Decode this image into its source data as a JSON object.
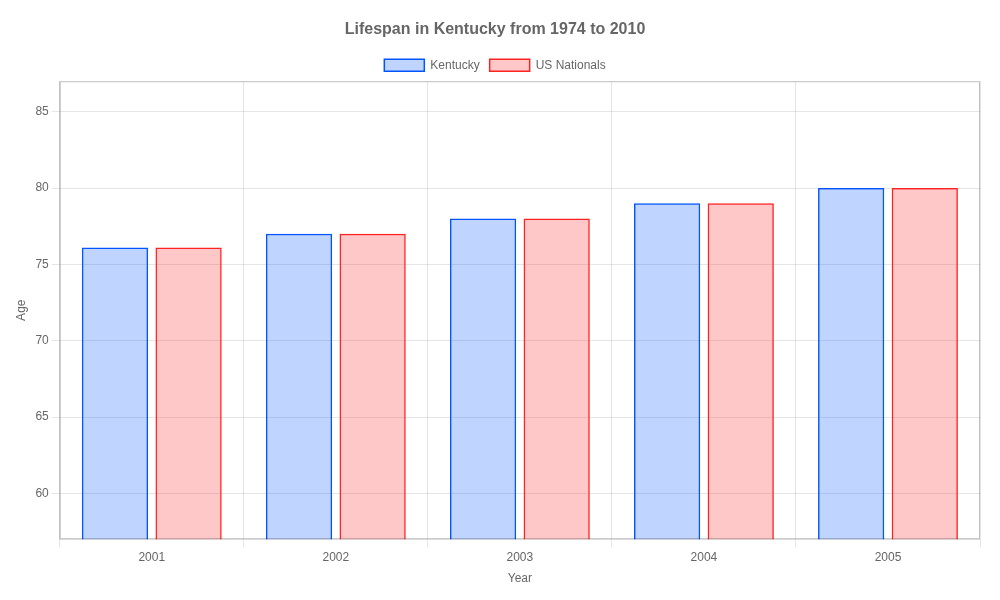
{
  "chart_data": {
    "type": "bar",
    "title": "Lifespan in Kentucky from 1974 to 2010",
    "xlabel": "Year",
    "ylabel": "Age",
    "categories": [
      "2001",
      "2002",
      "2003",
      "2004",
      "2005"
    ],
    "series": [
      {
        "name": "Kentucky",
        "color": "#0055ff",
        "values": [
          76.1,
          77.0,
          78.0,
          79.0,
          80.0
        ]
      },
      {
        "name": "US Nationals",
        "color": "#ff2222",
        "values": [
          76.1,
          77.0,
          78.0,
          79.0,
          80.0
        ]
      }
    ],
    "ylim": [
      57,
      87
    ],
    "yticks": [
      60,
      65,
      70,
      75,
      80,
      85
    ],
    "grid": true,
    "legend": "top"
  }
}
